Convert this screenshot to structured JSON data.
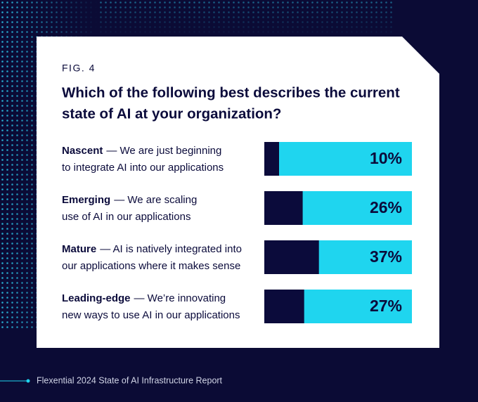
{
  "chart_data": {
    "type": "bar",
    "fig_label": "FIG. 4",
    "title_lines": [
      "Which of the following best describes the current",
      "state of AI at your organization?"
    ],
    "categories": [
      "Nascent",
      "Emerging",
      "Mature",
      "Leading-edge"
    ],
    "descriptions": [
      [
        "— We are just beginning",
        "to integrate AI into our applications"
      ],
      [
        "— We are scaling",
        "use of AI in our applications"
      ],
      [
        "— AI is natively integrated into",
        "our applications where it makes sense"
      ],
      [
        "— We’re innovating",
        "new ways to use AI in our applications"
      ]
    ],
    "values": [
      10,
      26,
      37,
      27
    ],
    "value_labels": [
      "10%",
      "26%",
      "37%",
      "27%"
    ],
    "xlim": [
      0,
      100
    ],
    "color": "#0b0b3b",
    "track_color": "#1fd5ef",
    "source": "Flexential 2024 State of AI Infrastructure Report"
  }
}
